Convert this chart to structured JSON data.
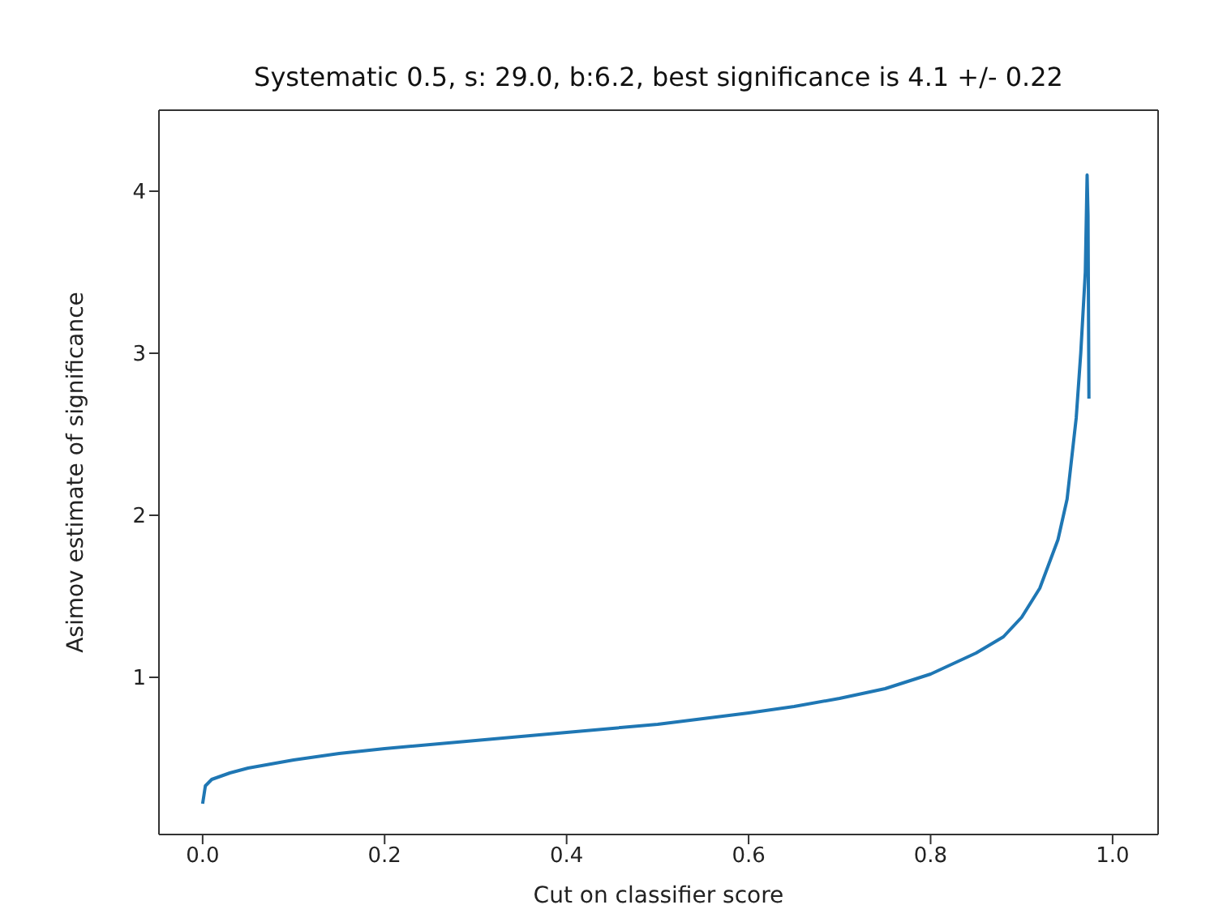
{
  "chart_data": {
    "type": "line",
    "title": "Systematic 0.5, s: 29.0, b:6.2, best significance is 4.1 +/- 0.22",
    "xlabel": "Cut on classifier score",
    "ylabel": "Asimov estimate of significance",
    "x": [
      0,
      0.003,
      0.01,
      0.03,
      0.05,
      0.1,
      0.15,
      0.2,
      0.3,
      0.4,
      0.5,
      0.6,
      0.65,
      0.7,
      0.75,
      0.8,
      0.85,
      0.88,
      0.9,
      0.92,
      0.94,
      0.95,
      0.96,
      0.965,
      0.97,
      0.972,
      0.973,
      0.974
    ],
    "series": [
      {
        "color": "#1f77b4",
        "values": [
          0.22,
          0.33,
          0.37,
          0.41,
          0.44,
          0.49,
          0.53,
          0.56,
          0.61,
          0.66,
          0.71,
          0.78,
          0.82,
          0.87,
          0.93,
          1.02,
          1.15,
          1.25,
          1.37,
          1.55,
          1.85,
          2.1,
          2.6,
          3.0,
          3.5,
          4.1,
          3.85,
          2.72
        ]
      }
    ],
    "xlim": [
      -0.048,
      1.05
    ],
    "ylim": [
      0.03,
      4.5
    ],
    "xticks": [
      {
        "value": 0,
        "label": "0.0"
      },
      {
        "value": 0.2,
        "label": "0.2"
      },
      {
        "value": 0.4,
        "label": "0.4"
      },
      {
        "value": 0.6,
        "label": "0.6"
      },
      {
        "value": 0.8,
        "label": "0.8"
      },
      {
        "value": 1,
        "label": "1.0"
      }
    ],
    "yticks": [
      1,
      2,
      3,
      4
    ],
    "marker": "none",
    "line_style": "solid"
  }
}
